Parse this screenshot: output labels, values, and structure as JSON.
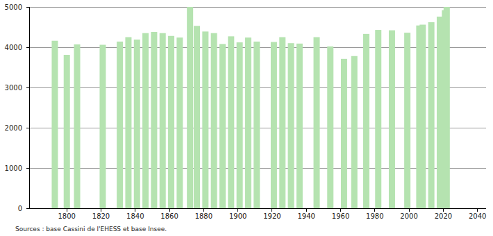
{
  "chart_data": {
    "type": "bar",
    "source": "Sources : base Cassini de l'EHESS et base Insee.",
    "x": [
      1793,
      1800,
      1806,
      1821,
      1831,
      1836,
      1841,
      1846,
      1851,
      1856,
      1861,
      1866,
      1872,
      1876,
      1881,
      1886,
      1891,
      1896,
      1901,
      1906,
      1911,
      1921,
      1926,
      1931,
      1936,
      1946,
      1954,
      1962,
      1968,
      1975,
      1982,
      1990,
      1999,
      2006,
      2008,
      2013,
      2018,
      2021,
      2022
    ],
    "values": [
      4160,
      3810,
      4070,
      4060,
      4140,
      4250,
      4190,
      4350,
      4380,
      4350,
      4280,
      4240,
      5000,
      4530,
      4390,
      4350,
      4080,
      4270,
      4120,
      4240,
      4140,
      4130,
      4250,
      4100,
      4090,
      4250,
      4020,
      3710,
      3780,
      4330,
      4430,
      4420,
      4360,
      4540,
      4560,
      4620,
      4760,
      4920,
      5000
    ],
    "color": "#b5e3b0",
    "xlim": [
      1778,
      2045
    ],
    "xticks": [
      1800,
      1820,
      1840,
      1860,
      1880,
      1900,
      1920,
      1940,
      1960,
      1980,
      2000,
      2020,
      2040
    ],
    "ylim": [
      0,
      5000
    ],
    "yticks": [
      0,
      1000,
      2000,
      3000,
      4000,
      5000
    ],
    "grid": true
  }
}
